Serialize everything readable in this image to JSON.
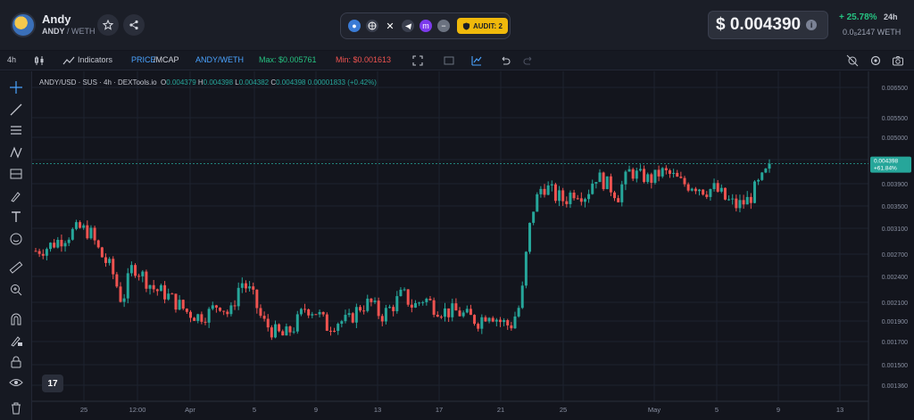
{
  "token": {
    "name": "Andy",
    "pair_base": "ANDY",
    "pair_quote": "/ WETH"
  },
  "audit": {
    "label": "AUDIT: 2"
  },
  "price": {
    "usd": "$ 0.004390",
    "change": "+ 25.78%",
    "period": "24h",
    "weth": "0.0₈2147 WETH"
  },
  "toolbar": {
    "interval": "4h",
    "indicators": "Indicators",
    "price_mcap_a": "PRICE",
    "price_mcap_b": "/MCAP",
    "pair": "ANDY/WETH",
    "max": "Max: $0.005761",
    "min": "Min: $0.001613"
  },
  "legend": {
    "symbol": "ANDY/USD · SUS · 4h · DEXTools.io",
    "o": "O",
    "o_val": "0.004379",
    "h": "H",
    "h_val": "0.004398",
    "l": "L",
    "l_val": "0.004382",
    "c": "C",
    "c_val": "0.004398",
    "chg": "0.00001833 (+0.42%)"
  },
  "tv_logo": "17",
  "colors": {
    "up": "#26a69a",
    "down": "#ef5350",
    "bg": "#13151d",
    "grid": "#1e2230"
  },
  "chart_data": {
    "type": "candlestick",
    "y_ticks": [
      "0.006500",
      "0.005500",
      "0.005000",
      "0.004500",
      "0.003900",
      "0.003500",
      "0.003100",
      "0.002700",
      "0.002400",
      "0.002100",
      "0.001900",
      "0.001700",
      "0.001500",
      "0.001360"
    ],
    "y_tick_values": [
      0.0065,
      0.0055,
      0.005,
      0.0045,
      0.0039,
      0.0035,
      0.0031,
      0.0027,
      0.0024,
      0.0021,
      0.0019,
      0.0017,
      0.0015,
      0.00136
    ],
    "x_ticks": [
      "25",
      "12:00",
      "Apr",
      "5",
      "9",
      "13",
      "17",
      "21",
      "25",
      "May",
      "5",
      "9",
      "13"
    ],
    "last_price_label": "0.004398",
    "last_change_label": "+61.84%",
    "last_price": 0.004398,
    "close_path": [
      0.00275,
      0.0028,
      0.0029,
      0.003,
      0.0031,
      0.00305,
      0.0027,
      0.0025,
      0.0021,
      0.00255,
      0.0024,
      0.00225,
      0.0022,
      0.0021,
      0.002,
      0.00195,
      0.00198,
      0.0021,
      0.00195,
      0.00235,
      0.0022,
      0.0019,
      0.0018,
      0.00175,
      0.00185,
      0.00205,
      0.002,
      0.00185,
      0.0019,
      0.0019,
      0.00205,
      0.0021,
      0.00195,
      0.00205,
      0.0022,
      0.00205,
      0.00215,
      0.00205,
      0.002,
      0.002,
      0.00195,
      0.0019,
      0.002,
      0.0019,
      0.00185,
      0.0021,
      0.0034,
      0.0039,
      0.0037,
      0.0036,
      0.0038,
      0.0037,
      0.0041,
      0.0039,
      0.0037,
      0.0042,
      0.0041,
      0.004,
      0.0042,
      0.0041,
      0.0039,
      0.0039,
      0.0038,
      0.0038,
      0.0036,
      0.0035,
      0.0036,
      0.0039,
      0.0043
    ]
  }
}
